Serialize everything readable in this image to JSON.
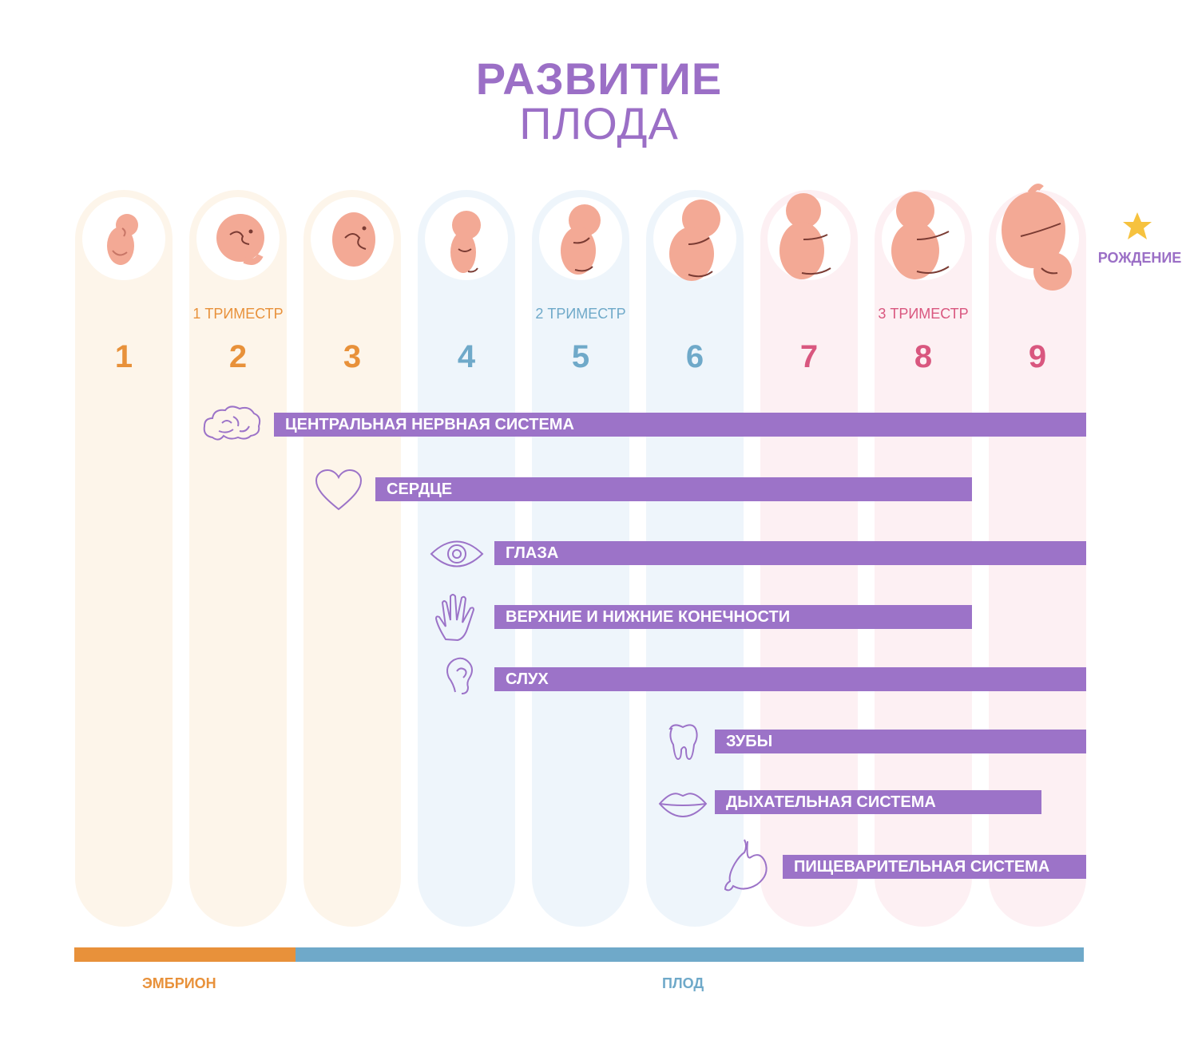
{
  "title": {
    "line1": "РАЗВИТИЕ",
    "line2": "ПЛОДА"
  },
  "colors": {
    "purple": "#9c73c8",
    "trimester1": "#e8913a",
    "trimester2": "#6fa9c9",
    "trimester3": "#d9577f",
    "fetus": "#f3a995",
    "star": "#f6c23e"
  },
  "trimesters": [
    {
      "label": "1 ТРИМЕСТР"
    },
    {
      "label": "2 ТРИМЕСТР"
    },
    {
      "label": "3 ТРИМЕСТР"
    }
  ],
  "months": [
    "1",
    "2",
    "3",
    "4",
    "5",
    "6",
    "7",
    "8",
    "9"
  ],
  "birth": {
    "label": "РОЖДЕНИЕ",
    "icon": "star-icon"
  },
  "organs": [
    {
      "label": "ЦЕНТРАЛЬНАЯ НЕРВНАЯ СИСТЕМА",
      "icon": "brain-icon"
    },
    {
      "label": "СЕРДЦЕ",
      "icon": "heart-icon"
    },
    {
      "label": "ГЛАЗА",
      "icon": "eye-icon"
    },
    {
      "label": "ВЕРХНИЕ И НИЖНИЕ КОНЕЧНОСТИ",
      "icon": "hand-icon"
    },
    {
      "label": "СЛУХ",
      "icon": "ear-icon"
    },
    {
      "label": "ЗУБЫ",
      "icon": "tooth-icon"
    },
    {
      "label": "ДЫХАТЕЛЬНАЯ СИСТЕМА",
      "icon": "lips-icon"
    },
    {
      "label": "ПИЩЕВАРИТЕЛЬНАЯ СИСТЕМА",
      "icon": "stomach-icon"
    }
  ],
  "phases": [
    {
      "label": "ЭМБРИОН"
    },
    {
      "label": "ПЛОД"
    }
  ]
}
